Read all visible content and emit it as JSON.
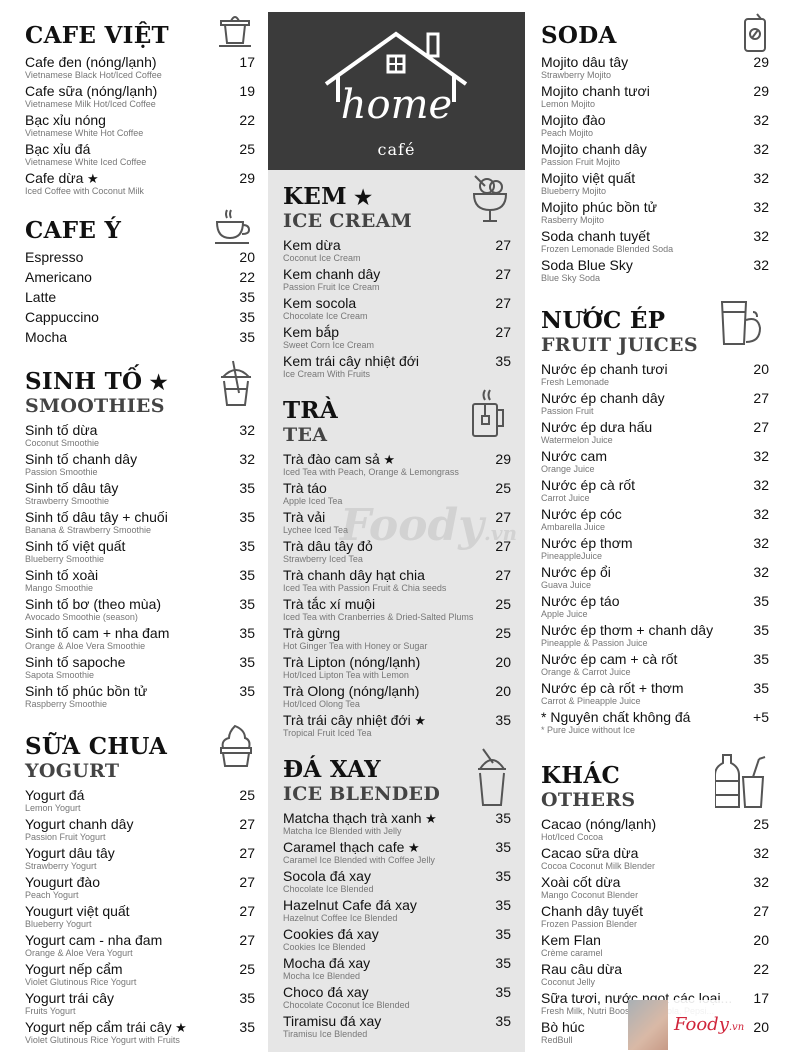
{
  "logo": {
    "word": "home",
    "sub": "café"
  },
  "watermark": {
    "text": "Foody",
    "suffix": ".vn"
  },
  "badge": {
    "text": "Foody",
    "suffix": ".vn"
  },
  "sections": {
    "cafe_viet": {
      "title": "CAFE VIỆT",
      "subtitle": "",
      "icon": "coffee-filter-icon",
      "items": [
        {
          "name": "Cafe đen (nóng/lạnh)",
          "sub": "Vietnamese Black Hot/Iced Coffee",
          "price": "17"
        },
        {
          "name": "Cafe sữa (nóng/lạnh)",
          "sub": "Vietnamese Milk Hot/Iced Coffee",
          "price": "19"
        },
        {
          "name": "Bạc xỉu nóng",
          "sub": "Vietnamese White Hot Coffee",
          "price": "22"
        },
        {
          "name": "Bạc xỉu đá",
          "sub": "Vietnamese White Iced Coffee",
          "price": "25"
        },
        {
          "name": "Cafe dừa",
          "sub": "Iced Coffee with Coconut Milk",
          "price": "29",
          "star": true
        }
      ]
    },
    "cafe_y": {
      "title": "CAFE Ý",
      "subtitle": "",
      "icon": "coffee-cup-icon",
      "items": [
        {
          "name": "Espresso",
          "sub": "",
          "price": "20"
        },
        {
          "name": "Americano",
          "sub": "",
          "price": "22"
        },
        {
          "name": "Latte",
          "sub": "",
          "price": "35"
        },
        {
          "name": "Cappuccino",
          "sub": "",
          "price": "35"
        },
        {
          "name": "Mocha",
          "sub": "",
          "price": "35"
        }
      ]
    },
    "sinh_to": {
      "title": "SINH TỐ",
      "star": true,
      "subtitle": "SMOOTHIES",
      "icon": "smoothie-cup-icon",
      "items": [
        {
          "name": "Sinh tố dừa",
          "sub": "Coconut Smoothie",
          "price": "32"
        },
        {
          "name": "Sinh tố chanh dây",
          "sub": "Passion Smoothie",
          "price": "32"
        },
        {
          "name": "Sinh tố dâu tây",
          "sub": "Strawberry Smoothie",
          "price": "35"
        },
        {
          "name": "Sinh tố dâu tây + chuối",
          "sub": "Banana & Strawberry Smoothie",
          "price": "35"
        },
        {
          "name": "Sinh tố việt quất",
          "sub": "Blueberry Smoothie",
          "price": "35"
        },
        {
          "name": "Sinh tố xoài",
          "sub": "Mango Smoothie",
          "price": "35"
        },
        {
          "name": "Sinh tố bơ (theo mùa)",
          "sub": "Avocado Smoothie (season)",
          "price": "35"
        },
        {
          "name": "Sinh tố cam + nha đam",
          "sub": "Orange & Aloe Vera Smoothie",
          "price": "35"
        },
        {
          "name": "Sinh tố sapoche",
          "sub": "Sapota Smoothie",
          "price": "35"
        },
        {
          "name": "Sinh tố phúc bồn tử",
          "sub": "Raspberry Smoothie",
          "price": "35"
        }
      ]
    },
    "sua_chua": {
      "title": "SỮA CHUA",
      "subtitle": "YOGURT",
      "icon": "frozen-yogurt-icon",
      "items": [
        {
          "name": "Yogurt đá",
          "sub": "Lemon Yogurt",
          "price": "25"
        },
        {
          "name": "Yogurt chanh dây",
          "sub": "Passion Fruit Yogurt",
          "price": "27"
        },
        {
          "name": "Yogurt dâu tây",
          "sub": "Strawberry Yogurt",
          "price": "27"
        },
        {
          "name": "Yougurt đào",
          "sub": "Peach Yogurt",
          "price": "27"
        },
        {
          "name": "Yougurt việt quất",
          "sub": "Blueberry Yogurt",
          "price": "27"
        },
        {
          "name": "Yogurt cam - nha đam",
          "sub": "Orange & Aloe Vera Yogurt",
          "price": "27"
        },
        {
          "name": "Yogurt nếp cẩm",
          "sub": "Violet Glutinous Rice Yogurt",
          "price": "25"
        },
        {
          "name": "Yogurt trái cây",
          "sub": "Fruits Yogurt",
          "price": "35"
        },
        {
          "name": "Yogurt nếp cẩm trái cây",
          "sub": "Violet Glutinous Rice Yogurt with Fruits",
          "price": "35",
          "star": true
        }
      ]
    },
    "kem": {
      "title": "KEM",
      "star": true,
      "subtitle": "ICE CREAM",
      "icon": "ice-cream-bowl-icon",
      "items": [
        {
          "name": "Kem dừa",
          "sub": "Coconut Ice Cream",
          "price": "27"
        },
        {
          "name": "Kem chanh dây",
          "sub": "Passion Fruit Ice Cream",
          "price": "27"
        },
        {
          "name": "Kem socola",
          "sub": "Chocolate Ice Cream",
          "price": "27"
        },
        {
          "name": "Kem bắp",
          "sub": "Sweet Corn Ice Cream",
          "price": "27"
        },
        {
          "name": "Kem trái cây nhiệt đới",
          "sub": "Ice Cream With Fruits",
          "price": "35"
        }
      ]
    },
    "tra": {
      "title": "TRÀ",
      "subtitle": "TEA",
      "icon": "tea-mug-icon",
      "items": [
        {
          "name": "Trà đào cam sả",
          "sub": "Iced Tea with Peach, Orange & Lemongrass",
          "price": "29",
          "star": true
        },
        {
          "name": "Trà táo",
          "sub": "Apple Iced Tea",
          "price": "25"
        },
        {
          "name": "Trà vải",
          "sub": "Lychee Iced Tea",
          "price": "27"
        },
        {
          "name": "Trà dâu tây đỏ",
          "sub": "Strawberry Iced Tea",
          "price": "27"
        },
        {
          "name": "Trà chanh dây hạt chia",
          "sub": "Iced Tea with Passion Fruit & Chia seeds",
          "price": "27"
        },
        {
          "name": "Trà tắc xí muội",
          "sub": "Iced Tea with Cranberries & Dried-Salted Plums",
          "price": "25"
        },
        {
          "name": "Trà gừng",
          "sub": "Hot Ginger Tea with Honey or Sugar",
          "price": "25"
        },
        {
          "name": "Trà Lipton (nóng/lạnh)",
          "sub": "Hot/Iced Lipton Tea with Lemon",
          "price": "20"
        },
        {
          "name": "Trà Olong (nóng/lạnh)",
          "sub": "Hot/Iced Olong Tea",
          "price": "20"
        },
        {
          "name": "Trà trái cây nhiệt đới",
          "sub": "Tropical Fruit Iced Tea",
          "price": "35",
          "star": true
        }
      ]
    },
    "da_xay": {
      "title": "ĐÁ XAY",
      "subtitle": "ICE BLENDED",
      "icon": "blended-drink-icon",
      "items": [
        {
          "name": "Matcha thạch trà xanh",
          "sub": "Matcha Ice Blended with Jelly",
          "price": "35",
          "star": true
        },
        {
          "name": "Caramel thạch cafe",
          "sub": "Caramel Ice Blended with Coffee Jelly",
          "price": "35",
          "star": true
        },
        {
          "name": "Socola đá xay",
          "sub": "Chocolate Ice Blended",
          "price": "35"
        },
        {
          "name": "Hazelnut Cafe đá xay",
          "sub": "Hazelnut Coffee Ice Blended",
          "price": "35"
        },
        {
          "name": "Cookies đá xay",
          "sub": "Cookies Ice Blended",
          "price": "35"
        },
        {
          "name": "Mocha đá xay",
          "sub": "Mocha Ice Blended",
          "price": "35"
        },
        {
          "name": "Choco đá xay",
          "sub": "Chocolate Coconut Ice Blended",
          "price": "35"
        },
        {
          "name": "Tiramisu đá xay",
          "sub": "Tiramisu Ice Blended",
          "price": "35"
        }
      ]
    },
    "soda": {
      "title": "SODA",
      "subtitle": "",
      "icon": "soda-can-icon",
      "items": [
        {
          "name": "Mojito dâu tây",
          "sub": "Strawberry Mojito",
          "price": "29"
        },
        {
          "name": "Mojito chanh tươi",
          "sub": "Lemon Mojito",
          "price": "29"
        },
        {
          "name": "Mojito đào",
          "sub": "Peach Mojito",
          "price": "32"
        },
        {
          "name": "Mojito chanh dây",
          "sub": "Passion Fruit Mojito",
          "price": "32"
        },
        {
          "name": "Mojito việt quất",
          "sub": "Blueberry Mojito",
          "price": "32"
        },
        {
          "name": "Mojito phúc bồn tử",
          "sub": "Rasberry Mojito",
          "price": "32"
        },
        {
          "name": "Soda chanh tuyết",
          "sub": "Frozen Lemonade Blended Soda",
          "price": "32"
        },
        {
          "name": "Soda Blue Sky",
          "sub": "Blue Sky Soda",
          "price": "32"
        }
      ]
    },
    "nuoc_ep": {
      "title": "NƯỚC ÉP",
      "subtitle": "FRUIT JUICES",
      "icon": "juice-glass-fruit-icon",
      "items": [
        {
          "name": "Nước ép chanh tươi",
          "sub": "Fresh Lemonade",
          "price": "20"
        },
        {
          "name": "Nước ép chanh dây",
          "sub": "Passion Fruit",
          "price": "27"
        },
        {
          "name": "Nước ép dưa hấu",
          "sub": "Watermelon Juice",
          "price": "27"
        },
        {
          "name": "Nước cam",
          "sub": "Orange Juice",
          "price": "32"
        },
        {
          "name": "Nước ép cà rốt",
          "sub": "Carrot Juice",
          "price": "32"
        },
        {
          "name": "Nước ép cóc",
          "sub": "Ambarella Juice",
          "price": "32"
        },
        {
          "name": "Nước ép thơm",
          "sub": "PineappleJuice",
          "price": "32"
        },
        {
          "name": "Nước ép ổi",
          "sub": "Guava Juice",
          "price": "32"
        },
        {
          "name": "Nước ép táo",
          "sub": "Apple Juice",
          "price": "35"
        },
        {
          "name": "Nước ép thơm + chanh dây",
          "sub": "Pineapple & Passion Juice",
          "price": "35"
        },
        {
          "name": "Nước ép cam + cà rốt",
          "sub": "Orange & Carrot Juice",
          "price": "35"
        },
        {
          "name": "Nước ép cà rốt + thơm",
          "sub": "Carrot & Pineapple Juice",
          "price": "35"
        },
        {
          "name": "* Nguyên chất không đá",
          "sub": "* Pure Juice without Ice",
          "price": "+5"
        }
      ]
    },
    "khac": {
      "title": "KHÁC",
      "subtitle": "OTHERS",
      "icon": "bottle-and-cup-icon",
      "items": [
        {
          "name": "Cacao (nóng/lạnh)",
          "sub": "Hot/Iced Cocoa",
          "price": "25"
        },
        {
          "name": "Cacao sữa dừa",
          "sub": "Cocoa Coconut Milk Blender",
          "price": "32"
        },
        {
          "name": "Xoài cốt dừa",
          "sub": "Mango Coconut Blender",
          "price": "32"
        },
        {
          "name": "Chanh dây tuyết",
          "sub": "Frozen Passion Blender",
          "price": "27"
        },
        {
          "name": "Kem Flan",
          "sub": "Crème caramel",
          "price": "20"
        },
        {
          "name": "Rau câu dừa",
          "sub": "Coconut Jelly",
          "price": "22"
        },
        {
          "name": "Sữa tươi, nước ngọt các loại...",
          "sub": "Fresh Milk, Nutri Boost, Coca Cola, Pepsi...",
          "price": "17"
        },
        {
          "name": "Bò húc",
          "sub": "RedBull",
          "price": "20"
        }
      ]
    }
  }
}
